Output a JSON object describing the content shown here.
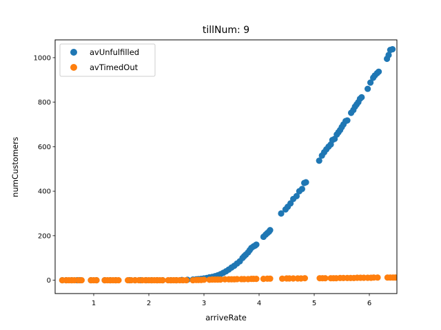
{
  "chart_data": {
    "type": "scatter",
    "title": "tillNum: 9",
    "xlabel": "arriveRate",
    "ylabel": "numCustomers",
    "xlim": [
      0.3,
      6.5
    ],
    "ylim": [
      -60,
      1080
    ],
    "xticks": [
      1,
      2,
      3,
      4,
      5,
      6
    ],
    "yticks": [
      0,
      200,
      400,
      600,
      800,
      1000
    ],
    "legend_position": "top-left",
    "grid": false,
    "series": [
      {
        "name": "avUnfulfilled",
        "color": "#1f77b4",
        "x": [
          0.43,
          0.5,
          0.6,
          0.7,
          0.75,
          0.95,
          1.05,
          1.2,
          1.3,
          1.4,
          1.65,
          1.75,
          1.85,
          1.95,
          2.05,
          2.15,
          2.25,
          2.4,
          2.5,
          2.6,
          2.7,
          2.8,
          2.86,
          2.9,
          2.95,
          3.0,
          3.05,
          3.1,
          3.15,
          3.2,
          3.25,
          3.3,
          3.35,
          3.4,
          3.45,
          3.5,
          3.55,
          3.6,
          3.65,
          3.7,
          3.73,
          3.76,
          3.8,
          3.83,
          3.86,
          3.9,
          3.93,
          3.95,
          4.08,
          4.12,
          4.15,
          4.18,
          4.2,
          4.4,
          4.48,
          4.52,
          4.57,
          4.62,
          4.68,
          4.73,
          4.78,
          4.82,
          4.85,
          5.09,
          5.14,
          5.18,
          5.22,
          5.26,
          5.3,
          5.33,
          5.37,
          5.41,
          5.44,
          5.47,
          5.5,
          5.53,
          5.57,
          5.6,
          5.67,
          5.71,
          5.74,
          5.77,
          5.8,
          5.83,
          5.86,
          5.97,
          6.02,
          6.07,
          6.1,
          6.14,
          6.17,
          6.32,
          6.35,
          6.38,
          6.42
        ],
        "y": [
          0,
          0,
          0,
          0,
          0,
          0,
          0,
          0,
          0,
          0,
          0,
          0,
          0,
          0,
          0,
          0,
          0,
          0,
          0,
          1,
          2,
          3,
          4,
          5,
          6,
          8,
          10,
          13,
          15,
          18,
          22,
          27,
          33,
          40,
          48,
          57,
          65,
          75,
          85,
          100,
          108,
          115,
          125,
          135,
          145,
          152,
          156,
          160,
          195,
          205,
          212,
          218,
          225,
          300,
          318,
          330,
          345,
          365,
          378,
          400,
          410,
          437,
          440,
          537,
          560,
          575,
          588,
          600,
          610,
          630,
          635,
          655,
          665,
          675,
          688,
          700,
          715,
          718,
          752,
          765,
          780,
          790,
          800,
          815,
          822,
          860,
          888,
          910,
          920,
          930,
          937,
          995,
          1012,
          1035,
          1038
        ]
      },
      {
        "name": "avTimedOut",
        "color": "#ff7f0e",
        "x": [
          0.43,
          0.5,
          0.55,
          0.6,
          0.65,
          0.72,
          0.78,
          0.95,
          1.0,
          1.05,
          1.2,
          1.25,
          1.3,
          1.35,
          1.4,
          1.45,
          1.62,
          1.68,
          1.75,
          1.82,
          1.88,
          1.94,
          2.0,
          2.05,
          2.1,
          2.15,
          2.2,
          2.25,
          2.35,
          2.4,
          2.45,
          2.5,
          2.56,
          2.62,
          2.68,
          2.8,
          2.86,
          2.9,
          2.95,
          3.0,
          3.1,
          3.15,
          3.2,
          3.25,
          3.3,
          3.38,
          3.45,
          3.5,
          3.55,
          3.6,
          3.68,
          3.73,
          3.8,
          3.86,
          3.9,
          3.95,
          4.08,
          4.15,
          4.2,
          4.42,
          4.5,
          4.55,
          4.62,
          4.7,
          4.76,
          4.83,
          5.1,
          5.15,
          5.2,
          5.3,
          5.35,
          5.4,
          5.47,
          5.53,
          5.6,
          5.66,
          5.72,
          5.78,
          5.84,
          5.9,
          5.97,
          6.03,
          6.08,
          6.15,
          6.33,
          6.38,
          6.43,
          6.47
        ],
        "y": [
          0,
          0,
          0,
          0,
          0,
          0,
          0,
          0,
          0,
          0,
          0,
          0,
          0,
          0,
          0,
          0,
          0,
          0,
          0,
          0,
          0,
          0,
          0,
          0,
          0,
          0,
          0,
          0,
          0,
          0,
          0,
          0,
          0,
          0,
          0,
          0,
          1,
          1,
          1,
          2,
          2,
          3,
          3,
          3,
          3,
          4,
          4,
          4,
          4,
          5,
          5,
          5,
          5,
          6,
          6,
          6,
          6,
          7,
          7,
          7,
          8,
          8,
          8,
          8,
          8,
          9,
          9,
          9,
          9,
          9,
          9,
          9,
          10,
          10,
          10,
          10,
          10,
          11,
          11,
          11,
          11,
          11,
          12,
          12,
          12,
          12,
          12,
          12
        ]
      }
    ]
  }
}
